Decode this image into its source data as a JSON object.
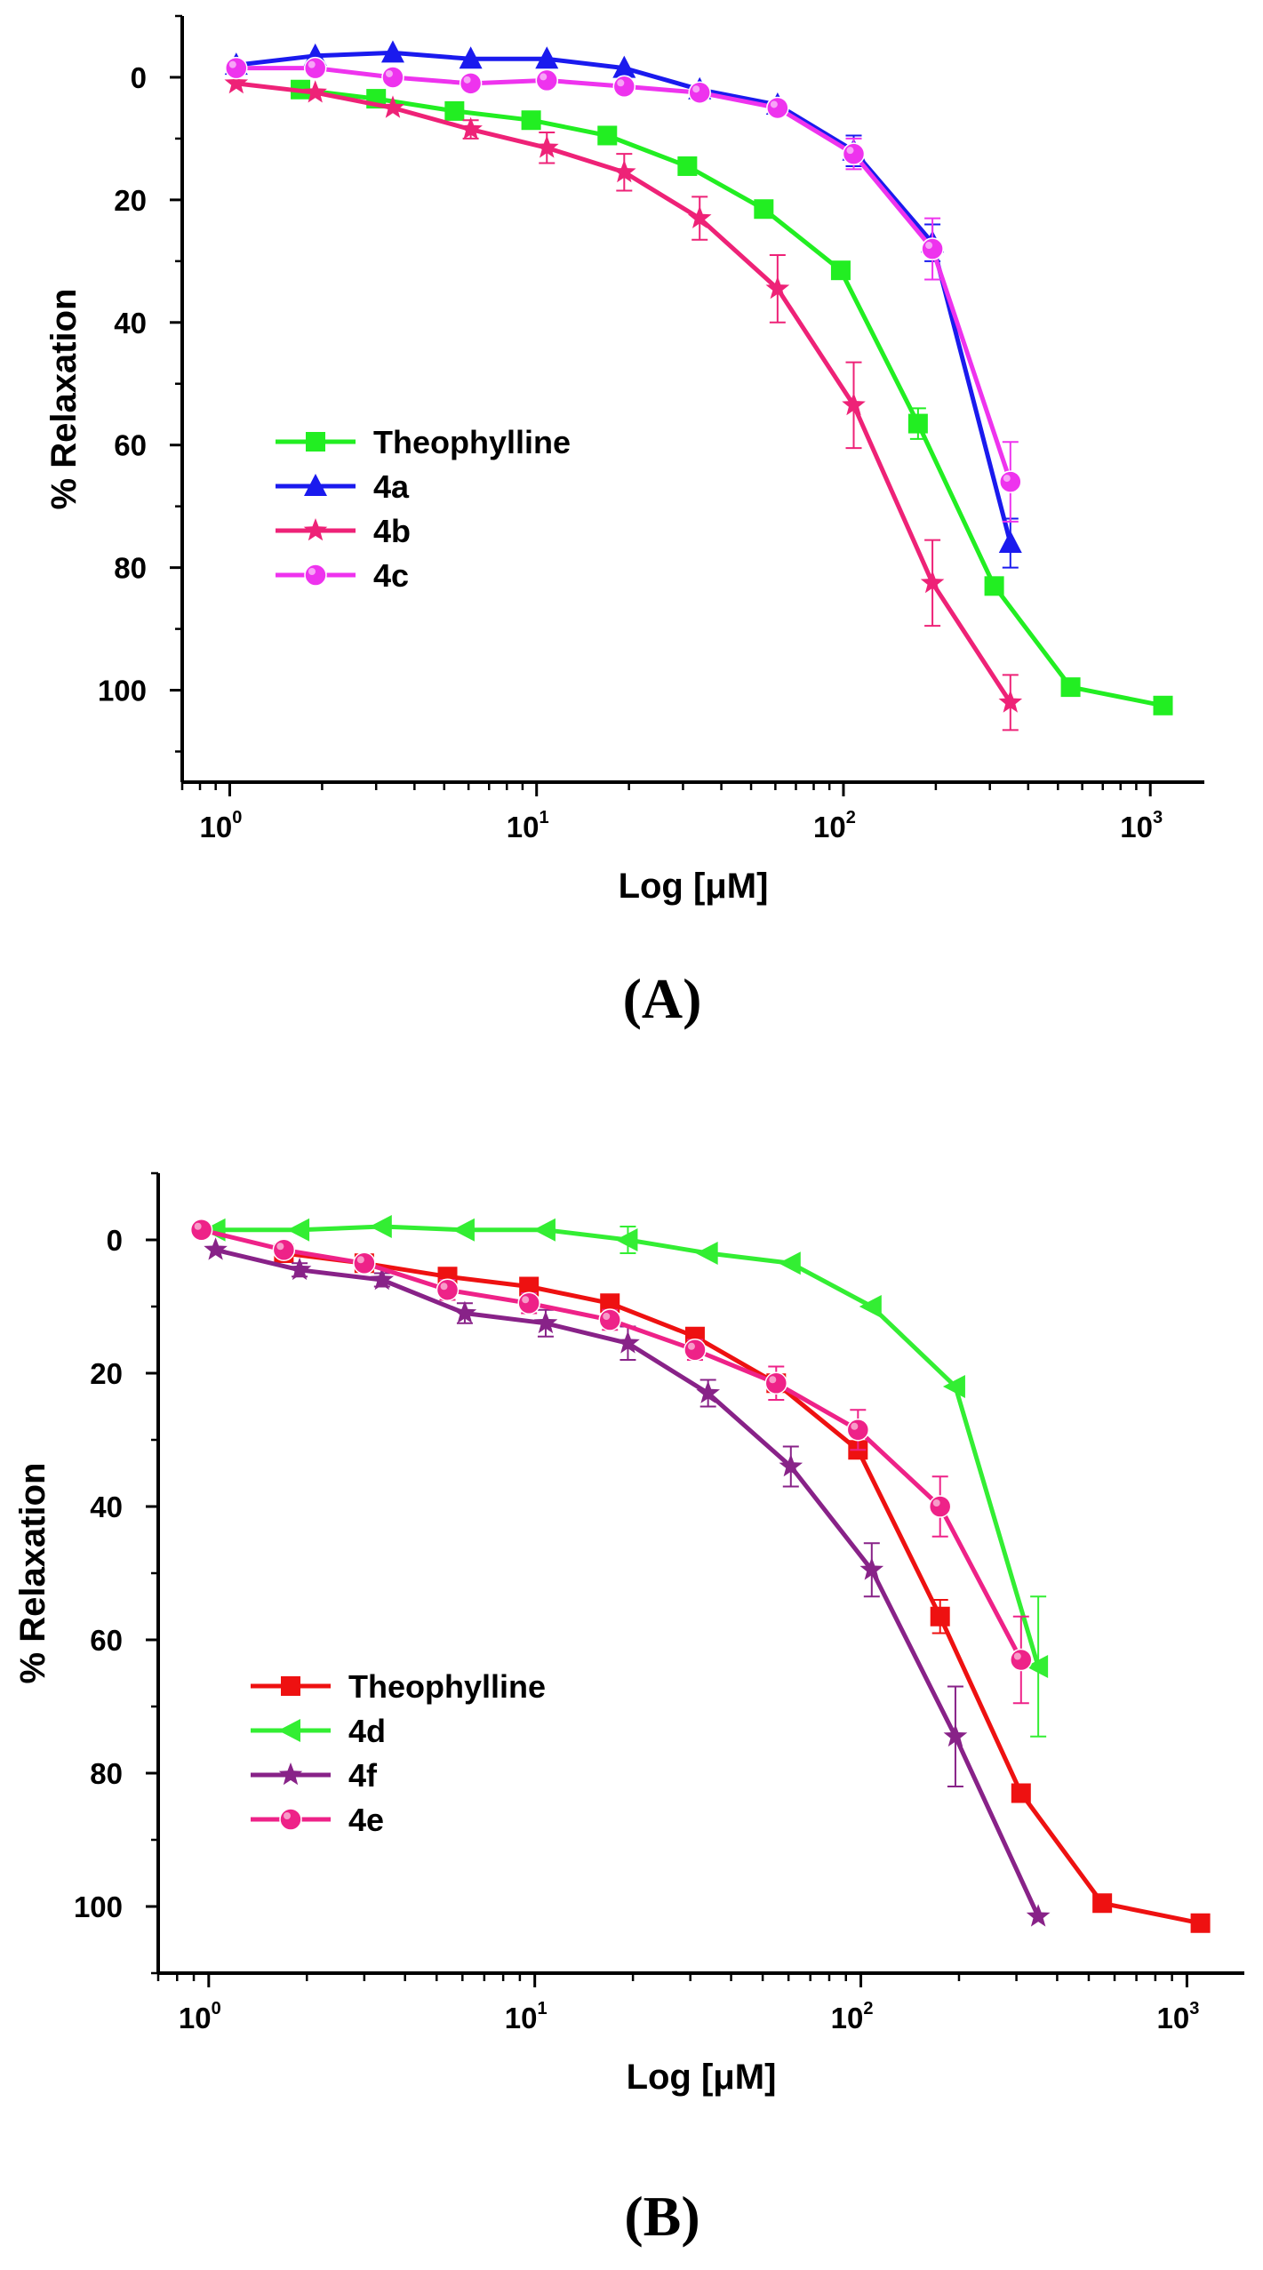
{
  "chart_data": [
    {
      "type": "line",
      "panel_label": "(A)",
      "xlabel": "Log [μM]",
      "ylabel": "% Relaxation",
      "xscale": "log",
      "xlim": [
        0.7,
        1500
      ],
      "ylim": [
        115,
        -10
      ],
      "y_inverted": true,
      "xticks": [
        {
          "base": "10",
          "exp": "0"
        },
        {
          "base": "10",
          "exp": "1"
        },
        {
          "base": "10",
          "exp": "2"
        },
        {
          "base": "10",
          "exp": "3"
        }
      ],
      "yticks": [
        "0",
        "20",
        "40",
        "60",
        "80",
        "100"
      ],
      "legend_position": "center-left",
      "series": [
        {
          "name": "Theophylline",
          "color": "#22ee22",
          "marker": "square",
          "x": [
            1.7,
            3.0,
            5.4,
            9.6,
            17,
            31,
            55,
            98,
            175,
            310,
            550,
            1100
          ],
          "y": [
            2,
            3.5,
            5.5,
            7,
            9.5,
            14.5,
            21.5,
            31.5,
            56.5,
            83,
            99.5,
            102.5
          ],
          "err": [
            0,
            0,
            0,
            0,
            0,
            0,
            0,
            0,
            2.5,
            0,
            0,
            0
          ]
        },
        {
          "name": "4a",
          "color": "#1a1aee",
          "marker": "triangle-up",
          "x": [
            1.05,
            1.9,
            3.4,
            6.1,
            10.8,
            19.3,
            34,
            61,
            108,
            195,
            350
          ],
          "y": [
            -2,
            -3.5,
            -4,
            -3,
            -3,
            -1.5,
            2,
            4.5,
            12,
            27,
            76
          ],
          "err": [
            0,
            0,
            0,
            0,
            0,
            0,
            0,
            0,
            2.5,
            3,
            4
          ]
        },
        {
          "name": "4b",
          "color": "#ee2277",
          "marker": "star",
          "x": [
            1.05,
            1.9,
            3.4,
            6.1,
            10.8,
            19.3,
            34,
            61,
            108,
            195,
            350
          ],
          "y": [
            1,
            2.5,
            5,
            8.5,
            11.5,
            15.5,
            23,
            34.5,
            53.5,
            82.5,
            102
          ],
          "err": [
            0,
            0,
            0,
            1.5,
            2.5,
            3,
            3.5,
            5.5,
            7,
            7,
            4.5
          ]
        },
        {
          "name": "4c",
          "color": "#ee33ee",
          "marker": "circle",
          "x": [
            1.05,
            1.9,
            3.4,
            6.1,
            10.8,
            19.3,
            34,
            61,
            108,
            195,
            350
          ],
          "y": [
            -1.5,
            -1.5,
            0,
            1,
            0.5,
            1.5,
            2.5,
            5,
            12.5,
            28,
            66
          ],
          "err": [
            0,
            0,
            0,
            0,
            0,
            0,
            0,
            1,
            2.5,
            5,
            6.5
          ]
        }
      ]
    },
    {
      "type": "line",
      "panel_label": "(B)",
      "xlabel": "Log [μM]",
      "ylabel": "% Relaxation",
      "xscale": "log",
      "xlim": [
        0.7,
        1500
      ],
      "ylim": [
        110,
        -10
      ],
      "y_inverted": true,
      "xticks": [
        {
          "base": "10",
          "exp": "0"
        },
        {
          "base": "10",
          "exp": "1"
        },
        {
          "base": "10",
          "exp": "2"
        },
        {
          "base": "10",
          "exp": "3"
        }
      ],
      "yticks": [
        "0",
        "20",
        "40",
        "60",
        "80",
        "100"
      ],
      "legend_position": "bottom-left",
      "series": [
        {
          "name": "Theophylline",
          "color": "#ee1111",
          "marker": "square",
          "x": [
            1.7,
            3.0,
            5.4,
            9.6,
            17,
            31,
            55,
            98,
            175,
            310,
            550,
            1100
          ],
          "y": [
            2,
            3.5,
            5.5,
            7,
            9.5,
            14.5,
            21.5,
            31.5,
            56.5,
            83,
            99.5,
            102.5
          ],
          "err": [
            0,
            0,
            0,
            0,
            0,
            0,
            0,
            0,
            2.5,
            0,
            0,
            0
          ]
        },
        {
          "name": "4d",
          "color": "#33ee33",
          "marker": "triangle-left",
          "x": [
            1.05,
            1.9,
            3.4,
            6.1,
            10.8,
            19.3,
            34,
            61,
            108,
            195,
            350
          ],
          "y": [
            -1.5,
            -1.5,
            -2,
            -1.5,
            -1.5,
            0,
            2,
            3.5,
            10,
            22,
            64
          ],
          "err": [
            0,
            0,
            0,
            0,
            0,
            2,
            0,
            0,
            0,
            0,
            10.5
          ]
        },
        {
          "name": "4f",
          "color": "#882288",
          "marker": "star",
          "x": [
            1.05,
            1.9,
            3.4,
            6.1,
            10.8,
            19.3,
            34,
            61,
            108,
            195,
            350
          ],
          "y": [
            1.5,
            4.5,
            6,
            11,
            12.5,
            15.5,
            23,
            34,
            49.5,
            74.5,
            101.5
          ],
          "err": [
            0,
            1,
            1,
            1.5,
            2,
            2.5,
            2,
            3,
            4,
            7.5,
            0
          ]
        },
        {
          "name": "4e",
          "color": "#ee2288",
          "marker": "circle",
          "x": [
            0.95,
            1.7,
            3.0,
            5.4,
            9.6,
            17,
            31,
            55,
            98,
            175,
            310
          ],
          "y": [
            -1.5,
            1.5,
            3.5,
            7.5,
            9.5,
            12,
            16.5,
            21.5,
            28.5,
            40,
            63
          ],
          "err": [
            0,
            0,
            1,
            1.5,
            1.5,
            1.5,
            1.5,
            2.5,
            3,
            4.5,
            6.5
          ]
        }
      ]
    }
  ]
}
